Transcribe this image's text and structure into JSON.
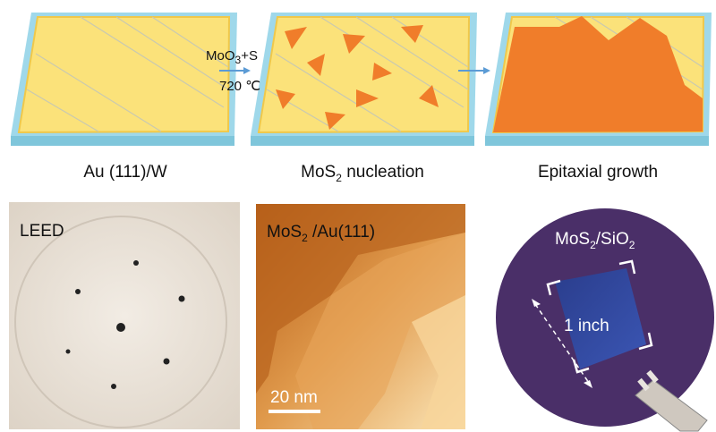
{
  "top_row": {
    "arrow_label": {
      "reactant": [
        "MoO",
        "3",
        "+S"
      ],
      "temperature": "720 ℃"
    },
    "panels": [
      {
        "caption": [
          "Au (111)/W"
        ]
      },
      {
        "caption": [
          "MoS",
          "2",
          " nucleation"
        ]
      },
      {
        "caption": [
          "Epitaxial growth"
        ]
      }
    ]
  },
  "bottom_row": {
    "leed": {
      "label": "LEED"
    },
    "stm": {
      "label": [
        "MoS",
        "2",
        " /Au(111)"
      ],
      "scale_bar": "20 nm"
    },
    "wafer": {
      "label": [
        "MoS",
        "2",
        "/SiO",
        "2"
      ],
      "size": "1 inch"
    }
  }
}
